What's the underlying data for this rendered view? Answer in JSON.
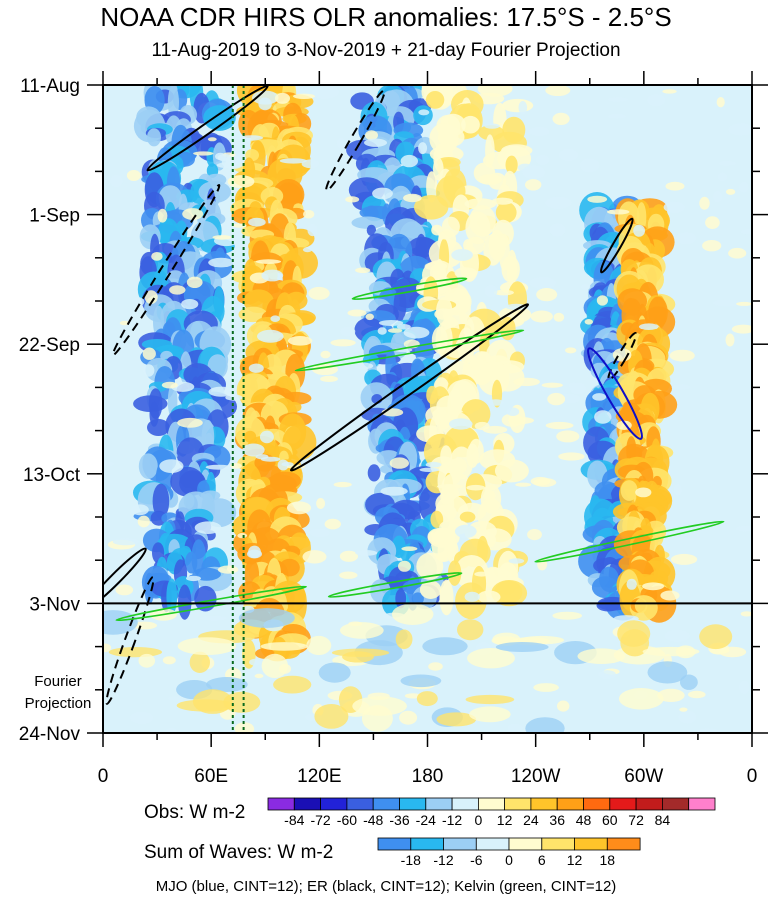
{
  "chart_data": {
    "type": "heatmap",
    "title": "NOAA CDR HIRS OLR anomalies: 17.5°S - 2.5°S",
    "subtitle": "11-Aug-2019 to 3-Nov-2019 + 21-day Fourier Projection",
    "x_ticks": [
      "0",
      "60E",
      "120E",
      "180",
      "120W",
      "60W",
      "0"
    ],
    "x_tick_lon": [
      0,
      60,
      120,
      180,
      240,
      300,
      360
    ],
    "y_ticks": [
      "11-Aug",
      "1-Sep",
      "22-Sep",
      "13-Oct",
      "3-Nov",
      "24-Nov"
    ],
    "y_tick_days": [
      0,
      21,
      42,
      63,
      84,
      105
    ],
    "projection_label": [
      "Fourier",
      "Projection"
    ],
    "projection_start_day": 84,
    "reference_meridians_lon": [
      72,
      78
    ],
    "obs_colorbar": {
      "label": "Obs: W m-2",
      "ticks": [
        "-84",
        "-72",
        "-60",
        "-48",
        "-36",
        "-24",
        "-12",
        "0",
        "12",
        "24",
        "36",
        "48",
        "60",
        "72",
        "84"
      ],
      "colors": [
        "#8a2be2",
        "#1a0fb5",
        "#2222d8",
        "#3a5fe0",
        "#3f8ff0",
        "#29b8f0",
        "#9ccff5",
        "#d9f2fb",
        "#fffcd0",
        "#ffe46b",
        "#ffc42a",
        "#ffa017",
        "#ff6a10",
        "#e41a1a",
        "#c21c1c",
        "#a32a2a",
        "#ff80cc"
      ]
    },
    "waves_colorbar": {
      "label": "Sum of Waves: W m-2",
      "ticks": [
        "-18",
        "-12",
        "-6",
        "0",
        "6",
        "12",
        "18"
      ],
      "colors": [
        "#3f8ff0",
        "#29b8f0",
        "#9ccff5",
        "#d9f2fb",
        "#fffcd0",
        "#ffe46b",
        "#ffc42a",
        "#ff8c1a"
      ]
    },
    "olr_bands": [
      {
        "lon": 45,
        "day_start": 0,
        "day_end": 84,
        "width": 40,
        "sign": "neg",
        "drift": 0
      },
      {
        "lon": 95,
        "day_start": 0,
        "day_end": 92,
        "width": 30,
        "sign": "pos",
        "drift": 0
      },
      {
        "lon": 160,
        "day_start": 0,
        "day_end": 84,
        "width": 35,
        "sign": "neg",
        "drift": 10
      },
      {
        "lon": 205,
        "day_start": 0,
        "day_end": 84,
        "width": 50,
        "sign": "pos_weak",
        "drift": 0
      },
      {
        "lon": 282,
        "day_start": 20,
        "day_end": 84,
        "width": 18,
        "sign": "neg",
        "drift": 0
      },
      {
        "lon": 300,
        "day_start": 20,
        "day_end": 84,
        "width": 18,
        "sign": "pos",
        "drift": 0
      }
    ],
    "er_contours": [
      {
        "lon": 58,
        "day": 7,
        "rx": 5,
        "ry": 38,
        "rot": 55,
        "dashed": false
      },
      {
        "lon": 140,
        "day": 9,
        "rx": 5,
        "ry": 30,
        "rot": 30,
        "dashed": true
      },
      {
        "lon": 35,
        "day": 30,
        "rx": 5,
        "ry": 52,
        "rot": 32,
        "dashed": true
      },
      {
        "lon": 170,
        "day": 49,
        "rx": 6,
        "ry": 75,
        "rot": 55,
        "dashed": false
      },
      {
        "lon": 285,
        "day": 26,
        "rx": 4,
        "ry": 16,
        "rot": 30,
        "dashed": false
      },
      {
        "lon": 288,
        "day": 44,
        "rx": 4,
        "ry": 14,
        "rot": 30,
        "dashed": true
      },
      {
        "lon": 7,
        "day": 80,
        "rx": 5,
        "ry": 22,
        "rot": 45,
        "dashed": false
      },
      {
        "lon": 15,
        "day": 90,
        "rx": 5,
        "ry": 35,
        "rot": 20,
        "dashed": true
      }
    ],
    "mjo_contours": [
      {
        "lon": 284,
        "day": 50,
        "rx": 8,
        "ry": 27,
        "rot": -30
      }
    ],
    "kelvin_contours": [
      {
        "lon": 170,
        "day": 33,
        "rx": 3,
        "ry": 30,
        "rot": 80
      },
      {
        "lon": 170,
        "day": 43,
        "rx": 3,
        "ry": 60,
        "rot": 80
      },
      {
        "lon": 162,
        "day": 81,
        "rx": 3,
        "ry": 35,
        "rot": 80
      },
      {
        "lon": 292,
        "day": 74,
        "rx": 3,
        "ry": 50,
        "rot": 78
      },
      {
        "lon": 60,
        "day": 84,
        "rx": 3,
        "ry": 50,
        "rot": 80
      }
    ],
    "xlim": [
      0,
      360
    ],
    "ylim_days": [
      0,
      105
    ]
  },
  "footer": "MJO (blue, CINT=12); ER (black, CINT=12); Kelvin (green, CINT=12)"
}
